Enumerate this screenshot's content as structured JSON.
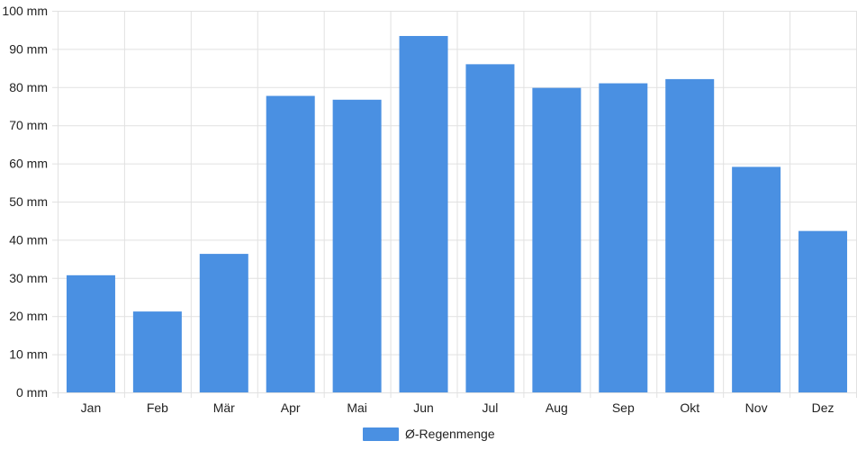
{
  "chart_data": {
    "type": "bar",
    "categories": [
      "Jan",
      "Feb",
      "Mär",
      "Apr",
      "Mai",
      "Jun",
      "Jul",
      "Aug",
      "Sep",
      "Okt",
      "Nov",
      "Dez"
    ],
    "series": [
      {
        "name": "Ø-Regenmenge",
        "values": [
          30.7,
          21.2,
          36.3,
          77.7,
          76.7,
          93.4,
          86.0,
          79.8,
          81.0,
          82.1,
          59.1,
          42.3
        ],
        "color": "#4a90e2"
      }
    ],
    "y_ticks": [
      "0 mm",
      "10 mm",
      "20 mm",
      "30 mm",
      "40 mm",
      "50 mm",
      "60 mm",
      "70 mm",
      "80 mm",
      "90 mm",
      "100 mm"
    ],
    "ylim": [
      0,
      100
    ],
    "grid": true,
    "legend_position": "bottom-center"
  }
}
